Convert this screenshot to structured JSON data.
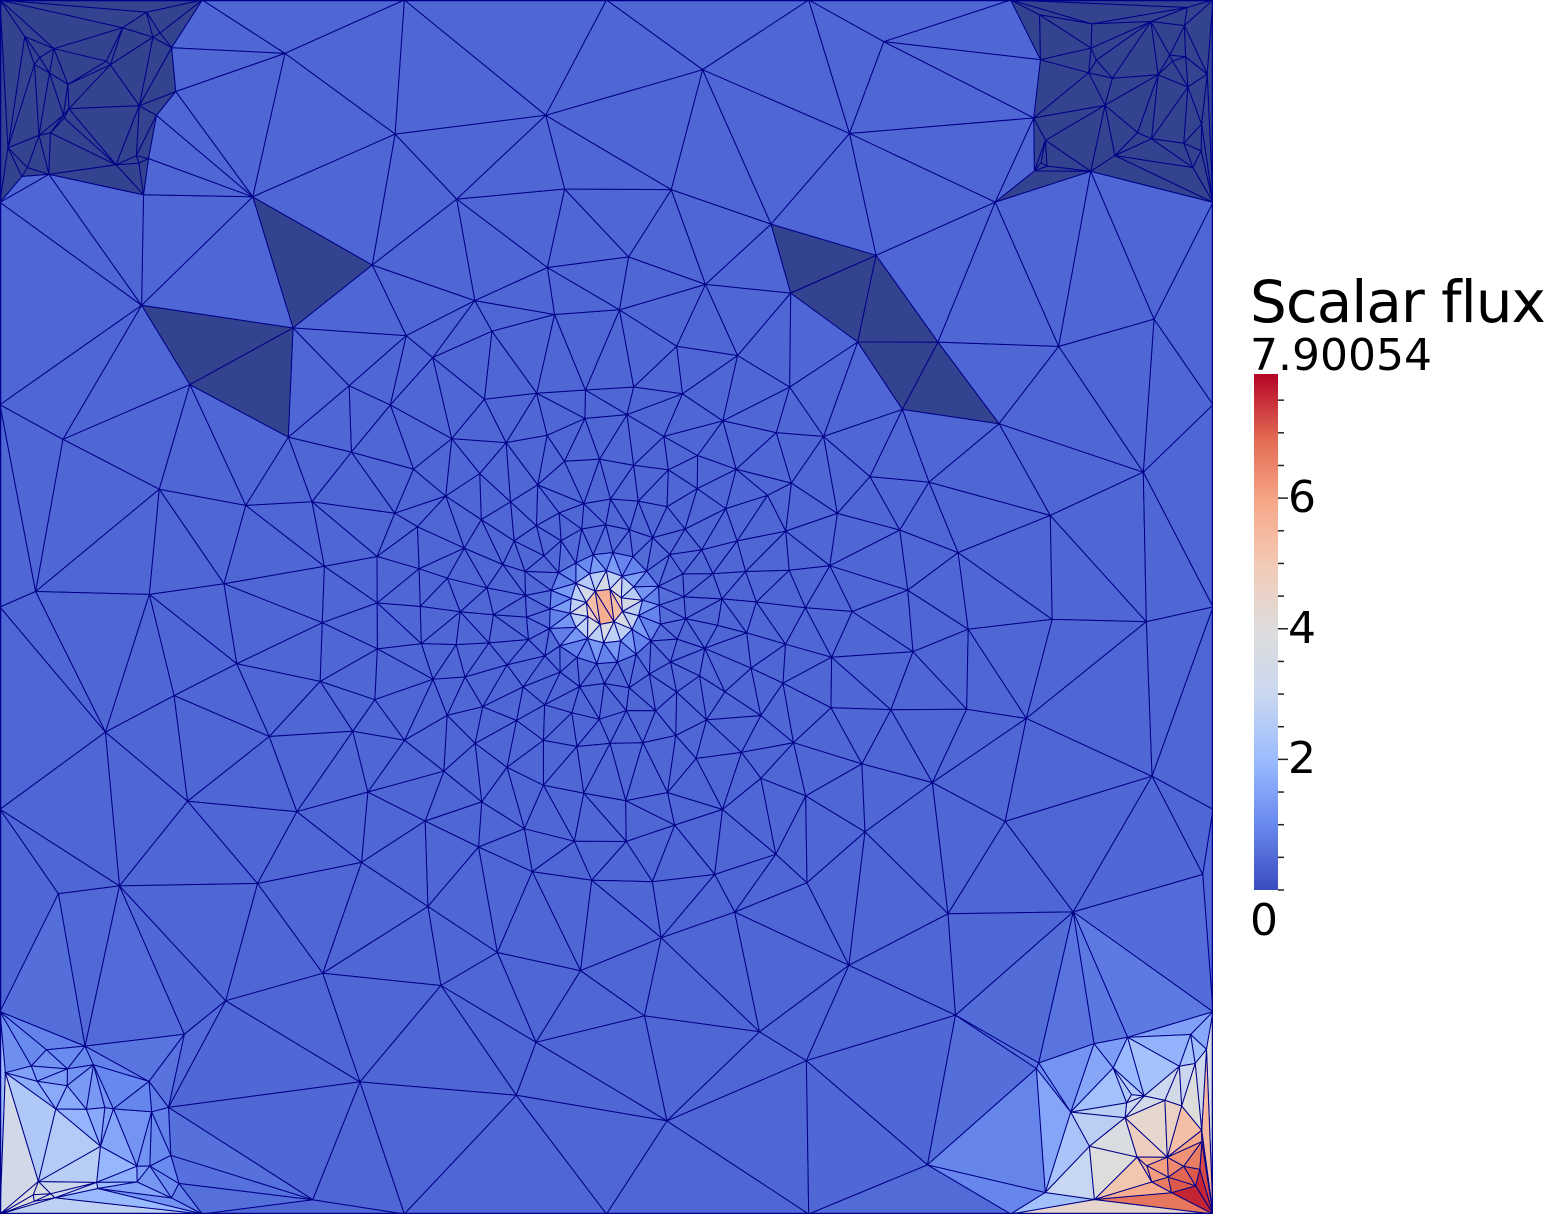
{
  "legend": {
    "title": "Scalar flux",
    "max_label": "7.90054",
    "min_label": "0",
    "ticks": [
      {
        "value": 2,
        "label": "2"
      },
      {
        "value": 4,
        "label": "4"
      },
      {
        "value": 6,
        "label": "6"
      }
    ],
    "range": [
      0,
      7.90054
    ],
    "colormap": [
      "#3b4cc0",
      "#6788ee",
      "#9abbff",
      "#c9d7f0",
      "#dddddd",
      "#f2cbb7",
      "#f7a889",
      "#e36a53",
      "#b40426"
    ]
  },
  "field": {
    "source_value": 5.6,
    "background_value": 0.45,
    "background_color": "#3d52a5",
    "mesh_line_color": "#000088"
  }
}
